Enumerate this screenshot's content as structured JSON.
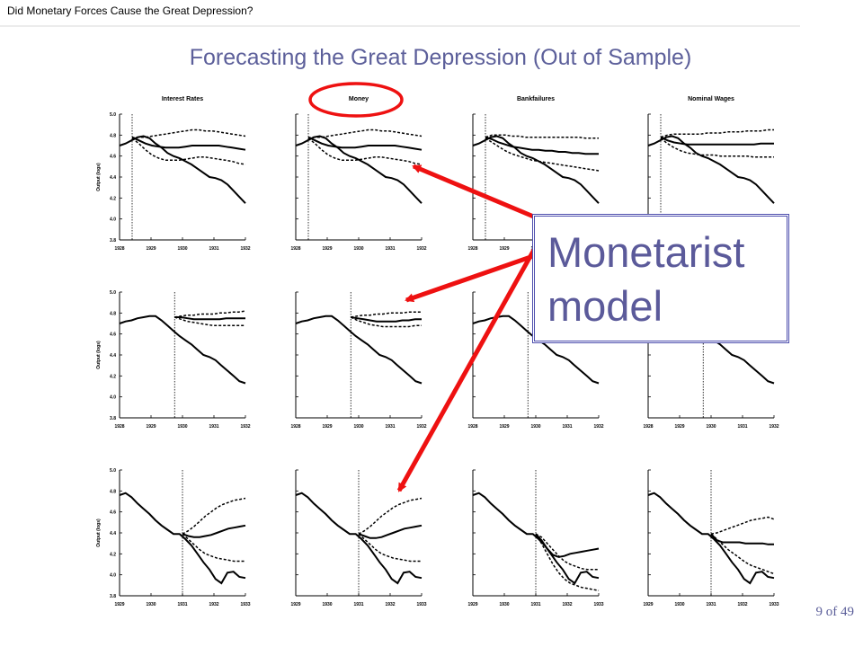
{
  "header": {
    "text": "Did Monetary Forces Cause the Great Depression?"
  },
  "slide_title": "Forecasting the Great Depression (Out of Sample)",
  "callout": {
    "text": "Monetarist\nmodel"
  },
  "page_number": "9 of 49",
  "colors": {
    "title": "#5c5f9a",
    "arrow": "#ee1111",
    "highlight_circle": "#ee1111",
    "callout_border": "#4e4fae"
  },
  "chart_data": {
    "type": "line",
    "layout": "small multiples 3 rows x 4 columns",
    "column_titles": [
      "Interest Rates",
      "Money",
      "Bankfailures",
      "Nominal Wages"
    ],
    "ylabel": "Output (logs)",
    "yticks": [
      "5.0",
      "4.8",
      "4.6",
      "4.4",
      "4.2",
      "4.0",
      "3.8"
    ],
    "ylim": [
      3.8,
      5.0
    ],
    "rows": [
      {
        "xticks": [
          "1928",
          "1929",
          "1930",
          "1931",
          "1932"
        ],
        "xlim": [
          1928,
          1932
        ],
        "forecast_origin": 1928.4
      },
      {
        "xticks": [
          "1928",
          "1929",
          "1930",
          "1931",
          "1932"
        ],
        "xlim": [
          1928,
          1932
        ],
        "forecast_origin": 1929.75
      },
      {
        "xticks": [
          "1929",
          "1930",
          "1931",
          "1932",
          "1933"
        ],
        "xlim": [
          1929,
          1933
        ],
        "forecast_origin": 1931
      }
    ],
    "actual": [
      [
        4.7,
        4.72,
        4.75,
        4.78,
        4.79,
        4.77,
        4.72,
        4.68,
        4.63,
        4.6,
        4.58,
        4.55,
        4.52,
        4.48,
        4.44,
        4.4,
        4.39,
        4.37,
        4.33,
        4.27,
        4.21,
        4.15
      ],
      [
        4.7,
        4.72,
        4.73,
        4.75,
        4.76,
        4.77,
        4.77,
        4.73,
        4.68,
        4.63,
        4.58,
        4.54,
        4.5,
        4.45,
        4.4,
        4.38,
        4.35,
        4.3,
        4.25,
        4.2,
        4.15,
        4.13
      ],
      [
        4.76,
        4.78,
        4.74,
        4.68,
        4.63,
        4.58,
        4.52,
        4.47,
        4.43,
        4.39,
        4.39,
        4.34,
        4.28,
        4.2,
        4.12,
        4.05,
        3.96,
        3.92,
        4.02,
        4.03,
        3.98,
        3.97
      ]
    ],
    "panels": [
      [
        {
          "forecast": [
            4.78,
            4.75,
            4.72,
            4.7,
            4.69,
            4.68,
            4.68,
            4.68,
            4.69,
            4.7,
            4.7,
            4.7,
            4.7,
            4.7,
            4.69,
            4.68,
            4.67,
            4.66
          ],
          "upper": [
            4.77,
            4.78,
            4.78,
            4.79,
            4.8,
            4.81,
            4.82,
            4.83,
            4.84,
            4.85,
            4.85,
            4.84,
            4.84,
            4.83,
            4.82,
            4.81,
            4.8,
            4.79
          ],
          "lower": [
            4.77,
            4.72,
            4.66,
            4.61,
            4.58,
            4.56,
            4.56,
            4.56,
            4.57,
            4.58,
            4.59,
            4.59,
            4.58,
            4.57,
            4.56,
            4.55,
            4.53,
            4.52
          ]
        },
        {
          "forecast": [
            4.78,
            4.75,
            4.72,
            4.7,
            4.69,
            4.68,
            4.68,
            4.68,
            4.69,
            4.7,
            4.7,
            4.7,
            4.7,
            4.7,
            4.69,
            4.68,
            4.67,
            4.66
          ],
          "upper": [
            4.77,
            4.78,
            4.78,
            4.79,
            4.8,
            4.81,
            4.82,
            4.83,
            4.84,
            4.85,
            4.85,
            4.84,
            4.84,
            4.83,
            4.82,
            4.81,
            4.8,
            4.79
          ],
          "lower": [
            4.77,
            4.72,
            4.66,
            4.61,
            4.58,
            4.56,
            4.56,
            4.56,
            4.57,
            4.58,
            4.59,
            4.59,
            4.58,
            4.57,
            4.56,
            4.55,
            4.53,
            4.52
          ]
        },
        {
          "forecast": [
            4.78,
            4.76,
            4.73,
            4.71,
            4.69,
            4.68,
            4.67,
            4.66,
            4.66,
            4.65,
            4.65,
            4.64,
            4.64,
            4.63,
            4.63,
            4.62,
            4.62,
            4.62
          ],
          "upper": [
            4.78,
            4.8,
            4.8,
            4.8,
            4.79,
            4.79,
            4.78,
            4.78,
            4.78,
            4.78,
            4.78,
            4.78,
            4.78,
            4.78,
            4.78,
            4.77,
            4.77,
            4.77
          ],
          "lower": [
            4.77,
            4.73,
            4.69,
            4.65,
            4.62,
            4.6,
            4.58,
            4.56,
            4.55,
            4.54,
            4.53,
            4.52,
            4.51,
            4.5,
            4.49,
            4.48,
            4.47,
            4.46
          ]
        },
        {
          "forecast": [
            4.78,
            4.75,
            4.73,
            4.72,
            4.71,
            4.71,
            4.71,
            4.71,
            4.71,
            4.71,
            4.71,
            4.71,
            4.71,
            4.71,
            4.71,
            4.72,
            4.72,
            4.72
          ],
          "upper": [
            4.78,
            4.8,
            4.81,
            4.81,
            4.81,
            4.81,
            4.81,
            4.82,
            4.82,
            4.82,
            4.83,
            4.83,
            4.83,
            4.84,
            4.84,
            4.84,
            4.85,
            4.85
          ],
          "lower": [
            4.77,
            4.72,
            4.68,
            4.65,
            4.63,
            4.62,
            4.61,
            4.61,
            4.61,
            4.6,
            4.6,
            4.6,
            4.6,
            4.6,
            4.59,
            4.59,
            4.59,
            4.59
          ]
        }
      ],
      [
        {
          "forecast": [
            4.76,
            4.76,
            4.75,
            4.74,
            4.74,
            4.74,
            4.74,
            4.74,
            4.75,
            4.75,
            4.75,
            4.75
          ],
          "upper": [
            4.76,
            4.77,
            4.78,
            4.78,
            4.79,
            4.79,
            4.79,
            4.8,
            4.8,
            4.81,
            4.81,
            4.82
          ],
          "lower": [
            4.76,
            4.74,
            4.72,
            4.71,
            4.7,
            4.69,
            4.68,
            4.68,
            4.68,
            4.68,
            4.68,
            4.68
          ]
        },
        {
          "forecast": [
            4.76,
            4.75,
            4.74,
            4.73,
            4.72,
            4.72,
            4.72,
            4.72,
            4.73,
            4.73,
            4.74,
            4.74
          ],
          "upper": [
            4.76,
            4.77,
            4.78,
            4.78,
            4.79,
            4.79,
            4.8,
            4.8,
            4.8,
            4.81,
            4.81,
            4.81
          ],
          "lower": [
            4.76,
            4.73,
            4.71,
            4.69,
            4.68,
            4.67,
            4.67,
            4.67,
            4.67,
            4.67,
            4.68,
            4.68
          ]
        },
        {
          "forecast": [],
          "upper": [],
          "lower": []
        },
        {
          "forecast": [],
          "upper": [],
          "lower": []
        }
      ],
      [
        {
          "forecast": [
            4.39,
            4.37,
            4.36,
            4.36,
            4.37,
            4.38,
            4.4,
            4.42,
            4.44,
            4.45,
            4.46,
            4.47
          ],
          "upper": [
            4.39,
            4.42,
            4.46,
            4.51,
            4.56,
            4.6,
            4.64,
            4.67,
            4.69,
            4.71,
            4.72,
            4.73
          ],
          "lower": [
            4.39,
            4.34,
            4.29,
            4.24,
            4.2,
            4.18,
            4.16,
            4.15,
            4.14,
            4.13,
            4.13,
            4.13
          ]
        },
        {
          "forecast": [
            4.39,
            4.37,
            4.35,
            4.35,
            4.36,
            4.38,
            4.4,
            4.42,
            4.44,
            4.45,
            4.46,
            4.47
          ],
          "upper": [
            4.39,
            4.42,
            4.46,
            4.51,
            4.56,
            4.6,
            4.64,
            4.67,
            4.69,
            4.71,
            4.72,
            4.73
          ],
          "lower": [
            4.39,
            4.34,
            4.29,
            4.24,
            4.2,
            4.18,
            4.16,
            4.15,
            4.14,
            4.13,
            4.13,
            4.13
          ]
        },
        {
          "forecast": [
            4.39,
            4.33,
            4.25,
            4.19,
            4.17,
            4.18,
            4.2,
            4.21,
            4.22,
            4.23,
            4.24,
            4.25
          ],
          "upper": [
            4.39,
            4.36,
            4.3,
            4.24,
            4.18,
            4.13,
            4.1,
            4.08,
            4.06,
            4.05,
            4.05,
            4.05
          ],
          "lower": [
            4.39,
            4.3,
            4.2,
            4.1,
            4.02,
            3.96,
            3.92,
            3.9,
            3.88,
            3.87,
            3.86,
            3.85
          ]
        },
        {
          "forecast": [
            4.39,
            4.33,
            4.31,
            4.31,
            4.31,
            4.31,
            4.3,
            4.3,
            4.3,
            4.3,
            4.29,
            4.29
          ],
          "upper": [
            4.39,
            4.4,
            4.42,
            4.44,
            4.46,
            4.48,
            4.5,
            4.52,
            4.53,
            4.54,
            4.55,
            4.53
          ],
          "lower": [
            4.39,
            4.34,
            4.29,
            4.24,
            4.2,
            4.16,
            4.12,
            4.09,
            4.07,
            4.05,
            4.03,
            4.01
          ]
        }
      ]
    ]
  }
}
